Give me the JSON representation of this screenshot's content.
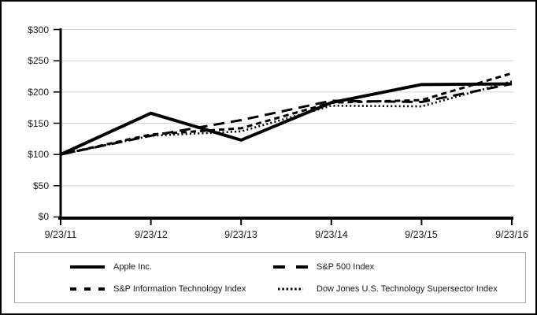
{
  "chart_data": {
    "type": "line",
    "title": "",
    "xlabel": "",
    "ylabel": "",
    "categories": [
      "9/23/11",
      "9/23/12",
      "9/23/13",
      "9/23/14",
      "9/23/15",
      "9/23/16"
    ],
    "series": [
      {
        "name": "Apple Inc.",
        "style": "solid",
        "values": [
          100,
          166,
          123,
          183,
          212,
          213
        ]
      },
      {
        "name": "S&P 500 Index",
        "style": "long-dash",
        "values": [
          100,
          130,
          155,
          186,
          184,
          213
        ]
      },
      {
        "name": "S&P Information Technology Index",
        "style": "short-dash",
        "values": [
          100,
          132,
          142,
          183,
          187,
          230
        ]
      },
      {
        "name": "Dow Jones U.S. Technology Supersector Index",
        "style": "dotted",
        "values": [
          100,
          130,
          137,
          178,
          177,
          217
        ]
      }
    ],
    "y_axis": {
      "min": 0,
      "max": 300,
      "step": 50,
      "tick_labels": [
        "$300",
        "$250",
        "$200",
        "$150",
        "$100",
        "$50",
        "$0"
      ]
    },
    "grid": true,
    "legend_position": "bottom-box",
    "colors": {
      "line": "#000000",
      "grid": "#d3d3d3",
      "axis": "#000000",
      "legend_border": "#a6a6a6",
      "frame_border": "#000000",
      "background": "#ffffff"
    }
  }
}
